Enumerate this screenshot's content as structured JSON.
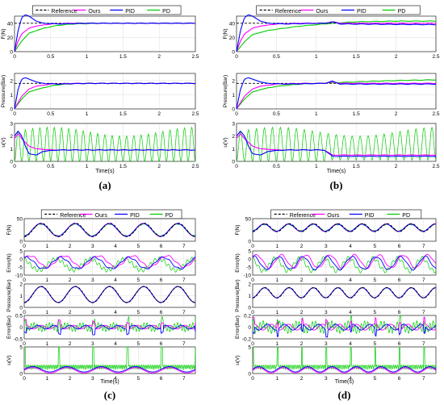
{
  "colors": {
    "reference": "#000000",
    "ours": "#ff00ff",
    "pid": "#0000ff",
    "pd": "#00cc00"
  },
  "legend_labels": [
    "Reference",
    "Ours",
    "PID",
    "PD"
  ],
  "panel_tags": [
    "(a)",
    "(b)",
    "(c)",
    "(d)"
  ],
  "xlabel": "Time(s)",
  "chart_data": [
    {
      "panel": "(a)",
      "type": "line",
      "grid": true,
      "legend": "top",
      "subplots": [
        {
          "ylabel": "F(N)",
          "xlim": [
            0,
            2.5
          ],
          "ylim": [
            0,
            50
          ],
          "xticks": [
            "0",
            "0.5",
            "1",
            "1.5",
            "2",
            "2.5"
          ],
          "yticks": [
            "0",
            "20",
            "40"
          ],
          "series": [
            {
              "name": "Reference",
              "x": [
                0,
                0.02,
                2.5
              ],
              "y": [
                40,
                40,
                40
              ]
            },
            {
              "name": "Ours",
              "x": [
                0,
                0.05,
                0.1,
                0.2,
                0.3,
                0.5,
                0.8,
                1.2,
                2.5
              ],
              "y": [
                0,
                15,
                25,
                33,
                36,
                39,
                40,
                40,
                40
              ]
            },
            {
              "name": "PID",
              "x": [
                0,
                0.05,
                0.1,
                0.15,
                0.2,
                0.3,
                0.4,
                0.6,
                1.0,
                2.5
              ],
              "y": [
                0,
                30,
                48,
                52,
                50,
                43,
                40,
                39,
                40,
                40
              ]
            },
            {
              "name": "PD",
              "x": [
                0,
                0.1,
                0.2,
                0.4,
                0.6,
                0.8,
                1.2,
                2.5
              ],
              "y": [
                0,
                15,
                26,
                33,
                37,
                39,
                40,
                40
              ]
            }
          ]
        },
        {
          "ylabel": "Pressure(Bar)",
          "xlim": [
            0,
            2.5
          ],
          "ylim": [
            0,
            2.5
          ],
          "xticks": [
            "0",
            "0.5",
            "1",
            "1.5",
            "2",
            "2.5"
          ],
          "yticks": [
            "0",
            "1",
            "2"
          ],
          "series": [
            {
              "name": "Reference",
              "x": [
                0,
                0.02,
                2.5
              ],
              "y": [
                1.8,
                1.8,
                1.8
              ]
            },
            {
              "name": "Ours",
              "x": [
                0,
                0.1,
                0.2,
                0.3,
                0.5,
                0.8,
                2.5
              ],
              "y": [
                0,
                0.9,
                1.4,
                1.6,
                1.75,
                1.8,
                1.8
              ]
            },
            {
              "name": "PID",
              "x": [
                0,
                0.05,
                0.1,
                0.15,
                0.2,
                0.3,
                0.4,
                0.6,
                1.0,
                2.5
              ],
              "y": [
                0,
                1.4,
                2.1,
                2.2,
                2.1,
                1.9,
                1.8,
                1.75,
                1.8,
                1.8
              ]
            },
            {
              "name": "PD",
              "x": [
                0,
                0.1,
                0.2,
                0.4,
                0.6,
                0.8,
                1.2,
                2.5
              ],
              "y": [
                0,
                0.7,
                1.2,
                1.5,
                1.7,
                1.78,
                1.8,
                1.8
              ]
            }
          ]
        },
        {
          "ylabel": "u(V)",
          "xlim": [
            0,
            2.5
          ],
          "ylim": [
            0,
            3
          ],
          "xticks": [
            "0",
            "0.5",
            "1",
            "1.5",
            "2",
            "2.5"
          ],
          "yticks": [
            "0",
            "1",
            "2",
            "3"
          ],
          "series": [
            {
              "name": "Ours",
              "x": [
                0,
                0.05,
                0.1,
                0.2,
                0.3,
                0.5,
                2.5
              ],
              "y": [
                1.8,
                2.2,
                1.8,
                1.2,
                1.0,
                0.9,
                0.9
              ]
            },
            {
              "name": "PID",
              "x": [
                0,
                0.05,
                0.1,
                0.15,
                0.2,
                0.3,
                0.4,
                0.6,
                1.0,
                2.5
              ],
              "y": [
                2.0,
                2.4,
                2.0,
                1.2,
                0.6,
                0.5,
                0.8,
                0.9,
                0.9,
                0.9
              ]
            },
            {
              "name": "PD",
              "x": [
                0,
                2.5
              ],
              "y": [
                0,
                0
              ],
              "note_osc": {
                "period": 0.1,
                "low": 0.0,
                "high": [
                  2.0,
                  2.7
                ]
              }
            }
          ]
        }
      ]
    },
    {
      "panel": "(b)",
      "type": "line",
      "grid": true,
      "legend": "top",
      "subplots": [
        {
          "ylabel": "F(N)",
          "xlim": [
            0,
            2.5
          ],
          "ylim": [
            0,
            50
          ],
          "xticks": [
            "0",
            "0.5",
            "1",
            "1.5",
            "2",
            "2.5"
          ],
          "yticks": [
            "0",
            "20",
            "40"
          ],
          "series": [
            {
              "name": "Reference",
              "x": [
                0,
                0.02,
                2.5
              ],
              "y": [
                40,
                40,
                40
              ]
            },
            {
              "name": "Ours",
              "x": [
                0,
                0.05,
                0.1,
                0.2,
                0.3,
                0.5,
                0.8,
                1.1,
                1.2,
                1.3,
                2.5
              ],
              "y": [
                0,
                15,
                25,
                33,
                36,
                39,
                40,
                40,
                42,
                40,
                40
              ]
            },
            {
              "name": "PID",
              "x": [
                0,
                0.05,
                0.1,
                0.15,
                0.2,
                0.3,
                0.4,
                0.6,
                1.1,
                1.2,
                1.3,
                2.5
              ],
              "y": [
                0,
                30,
                48,
                52,
                50,
                43,
                40,
                39,
                40,
                42,
                39,
                38
              ]
            },
            {
              "name": "PD",
              "x": [
                0,
                0.1,
                0.2,
                0.4,
                0.6,
                0.8,
                1.0,
                1.2,
                1.5,
                2.0,
                2.5
              ],
              "y": [
                0,
                14,
                24,
                30,
                33,
                36,
                38,
                40,
                42,
                43,
                43
              ]
            }
          ]
        },
        {
          "ylabel": "Pressure(Bar)",
          "xlim": [
            0,
            2.5
          ],
          "ylim": [
            0,
            2.5
          ],
          "xticks": [
            "0",
            "0.5",
            "1",
            "1.5",
            "2",
            "2.5"
          ],
          "yticks": [
            "0",
            "1",
            "2"
          ],
          "series": [
            {
              "name": "Reference",
              "x": [
                0,
                0.02,
                2.5
              ],
              "y": [
                1.8,
                1.8,
                1.8
              ]
            },
            {
              "name": "Ours",
              "x": [
                0,
                0.1,
                0.2,
                0.3,
                0.5,
                0.8,
                1.1,
                1.2,
                1.3,
                2.5
              ],
              "y": [
                0,
                0.9,
                1.4,
                1.6,
                1.75,
                1.8,
                1.8,
                1.9,
                1.8,
                1.8
              ]
            },
            {
              "name": "PID",
              "x": [
                0,
                0.05,
                0.1,
                0.15,
                0.2,
                0.3,
                0.4,
                0.6,
                1.1,
                1.2,
                1.3,
                2.5
              ],
              "y": [
                0,
                1.4,
                2.1,
                2.2,
                2.1,
                1.9,
                1.8,
                1.75,
                1.8,
                1.95,
                1.75,
                1.75
              ]
            },
            {
              "name": "PD",
              "x": [
                0,
                0.1,
                0.2,
                0.4,
                0.6,
                0.8,
                1.0,
                1.2,
                1.5,
                2.0,
                2.5
              ],
              "y": [
                0,
                0.7,
                1.2,
                1.5,
                1.65,
                1.75,
                1.8,
                1.85,
                1.9,
                2.0,
                2.05
              ]
            }
          ]
        },
        {
          "ylabel": "u(V)",
          "xlim": [
            0,
            2.5
          ],
          "ylim": [
            0,
            3
          ],
          "xticks": [
            "0",
            "0.5",
            "1",
            "1.5",
            "2",
            "2.5"
          ],
          "yticks": [
            "0",
            "1",
            "2",
            "3"
          ],
          "series": [
            {
              "name": "Ours",
              "x": [
                0,
                0.05,
                0.1,
                0.2,
                0.3,
                0.5,
                1.1,
                1.2,
                2.5
              ],
              "y": [
                1.8,
                2.2,
                1.8,
                1.2,
                1.0,
                0.9,
                0.9,
                0.5,
                0.5
              ]
            },
            {
              "name": "PID",
              "x": [
                0,
                0.05,
                0.1,
                0.15,
                0.2,
                0.3,
                0.4,
                0.6,
                1.1,
                1.2,
                2.5
              ],
              "y": [
                2.0,
                2.4,
                2.0,
                1.2,
                0.6,
                0.5,
                0.8,
                0.9,
                0.9,
                0.4,
                0.4
              ]
            },
            {
              "name": "PD",
              "x": [
                0,
                2.5
              ],
              "y": [
                0,
                0
              ],
              "note_osc": {
                "period": 0.1,
                "low": 0.0,
                "high": [
                  2.0,
                  2.7
                ]
              }
            }
          ]
        }
      ]
    },
    {
      "panel": "(c)",
      "type": "line",
      "grid": true,
      "legend": "top",
      "subplots": [
        {
          "ylabel": "F(N)",
          "xlim": [
            0,
            7.5
          ],
          "ylim": [
            0,
            50
          ],
          "xticks": [
            "0",
            "1",
            "2",
            "3",
            "4",
            "5",
            "6",
            "7"
          ],
          "yticks": [
            "0",
            "50"
          ],
          "series_note": "sinusoidal tracking, period 1.5 s, range 10-40 N; Reference, Ours, PID and PD overlap"
        },
        {
          "ylabel": "Error(N)",
          "xlim": [
            0,
            7.5
          ],
          "ylim": [
            -10,
            5
          ],
          "xticks": [
            "0",
            "1",
            "2",
            "3",
            "4",
            "5",
            "6",
            "7"
          ],
          "yticks": [
            "-10",
            "-5",
            "0",
            "5"
          ],
          "series_note": "errors of Ours, PID and PD between about -8 and 3 N"
        },
        {
          "ylabel": "Pressure(Bar)",
          "xlim": [
            0,
            7.5
          ],
          "ylim": [
            0,
            2
          ],
          "xticks": [
            "0",
            "1",
            "2",
            "3",
            "4",
            "5",
            "6",
            "7"
          ],
          "yticks": [
            "0",
            "1",
            "2"
          ],
          "series_note": "sinusoidal pressure 0.4-1.8 Bar"
        },
        {
          "ylabel": "Error(Bar)",
          "xlim": [
            0,
            7.5
          ],
          "ylim": [
            -0.5,
            0.5
          ],
          "xticks": [
            "0",
            "1",
            "2",
            "3",
            "4",
            "5",
            "6",
            "7"
          ],
          "yticks": [
            "-0.5",
            "0",
            "0.5"
          ],
          "series_note": "pressure errors within about +/-0.3 Bar"
        },
        {
          "ylabel": "u(V)",
          "xlim": [
            0,
            7.5
          ],
          "ylim": [
            0,
            5
          ],
          "xticks": [
            "0",
            "1",
            "2",
            "3",
            "4",
            "5",
            "6",
            "7"
          ],
          "yticks": [
            "0",
            "5"
          ],
          "series_note": "PD control oscillates up to about 4 V"
        }
      ]
    },
    {
      "panel": "(d)",
      "type": "line",
      "grid": true,
      "legend": "top",
      "subplots": [
        {
          "ylabel": "F(N)",
          "xlim": [
            0,
            7.5
          ],
          "ylim": [
            0,
            50
          ],
          "xticks": [
            "0",
            "1",
            "2",
            "3",
            "4",
            "5",
            "6",
            "7"
          ],
          "yticks": [
            "0",
            "50"
          ],
          "series_note": "sinusoidal tracking, period 1.0 s, range 20-40 N"
        },
        {
          "ylabel": "Error(N)",
          "xlim": [
            0,
            7.5
          ],
          "ylim": [
            -10,
            5
          ],
          "xticks": [
            "0",
            "1",
            "2",
            "3",
            "4",
            "5",
            "6",
            "7"
          ],
          "yticks": [
            "-10",
            "-5",
            "0",
            "5"
          ],
          "series_note": "errors between about -10 and 5 N"
        },
        {
          "ylabel": "Pressure(Bar)",
          "xlim": [
            0,
            7.5
          ],
          "ylim": [
            0,
            2
          ],
          "xticks": [
            "0",
            "1",
            "2",
            "3",
            "4",
            "5",
            "6",
            "7"
          ],
          "yticks": [
            "0",
            "1",
            "2"
          ],
          "series_note": "sinusoidal pressure 0.8-1.7 Bar"
        },
        {
          "ylabel": "Error(Bar)",
          "xlim": [
            0,
            7.5
          ],
          "ylim": [
            -0.2,
            0.2
          ],
          "xticks": [
            "0",
            "1",
            "2",
            "3",
            "4",
            "5",
            "6",
            "7"
          ],
          "yticks": [
            "-0.2",
            "0",
            "0.2"
          ],
          "series_note": "pressure errors within about +/-0.15 Bar"
        },
        {
          "ylabel": "u(V)",
          "xlim": [
            0,
            7.5
          ],
          "ylim": [
            0,
            5
          ],
          "xticks": [
            "0",
            "1",
            "2",
            "3",
            "4",
            "5",
            "6",
            "7"
          ],
          "yticks": [
            "0",
            "5"
          ],
          "series_note": "PD control oscillates up to about 4 V"
        }
      ]
    }
  ]
}
